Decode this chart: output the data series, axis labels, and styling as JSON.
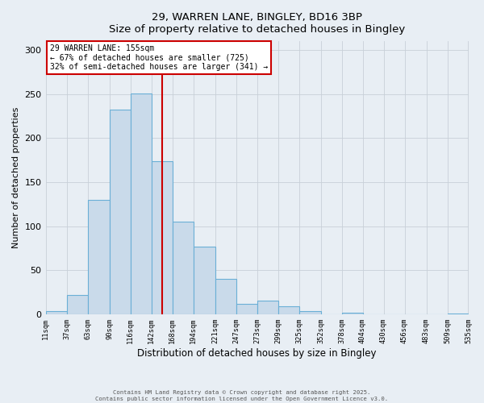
{
  "title_line1": "29, WARREN LANE, BINGLEY, BD16 3BP",
  "title_line2": "Size of property relative to detached houses in Bingley",
  "xlabel": "Distribution of detached houses by size in Bingley",
  "ylabel": "Number of detached properties",
  "bin_edges": [
    11,
    37,
    63,
    90,
    116,
    142,
    168,
    194,
    221,
    247,
    273,
    299,
    325,
    352,
    378,
    404,
    430,
    456,
    483,
    509,
    535
  ],
  "bar_heights": [
    4,
    22,
    130,
    232,
    251,
    174,
    105,
    77,
    40,
    12,
    16,
    9,
    4,
    0,
    2,
    0,
    0,
    0,
    0,
    1
  ],
  "bar_facecolor": "#c9daea",
  "bar_edgecolor": "#6aafd6",
  "bar_linewidth": 0.8,
  "grid_color": "#c8d0d8",
  "background_color": "#e8eef4",
  "property_value": 155,
  "vline_color": "#cc0000",
  "annotation_line1": "29 WARREN LANE: 155sqm",
  "annotation_line2": "← 67% of detached houses are smaller (725)",
  "annotation_line3": "32% of semi-detached houses are larger (341) →",
  "annotation_box_edgecolor": "#cc0000",
  "annotation_box_facecolor": "#ffffff",
  "ylim": [
    0,
    310
  ],
  "yticks": [
    0,
    50,
    100,
    150,
    200,
    250,
    300
  ],
  "footer_line1": "Contains HM Land Registry data © Crown copyright and database right 2025.",
  "footer_line2": "Contains public sector information licensed under the Open Government Licence v3.0.",
  "tick_labels": [
    "11sqm",
    "37sqm",
    "63sqm",
    "90sqm",
    "116sqm",
    "142sqm",
    "168sqm",
    "194sqm",
    "221sqm",
    "247sqm",
    "273sqm",
    "299sqm",
    "325sqm",
    "352sqm",
    "378sqm",
    "404sqm",
    "430sqm",
    "456sqm",
    "483sqm",
    "509sqm",
    "535sqm"
  ]
}
